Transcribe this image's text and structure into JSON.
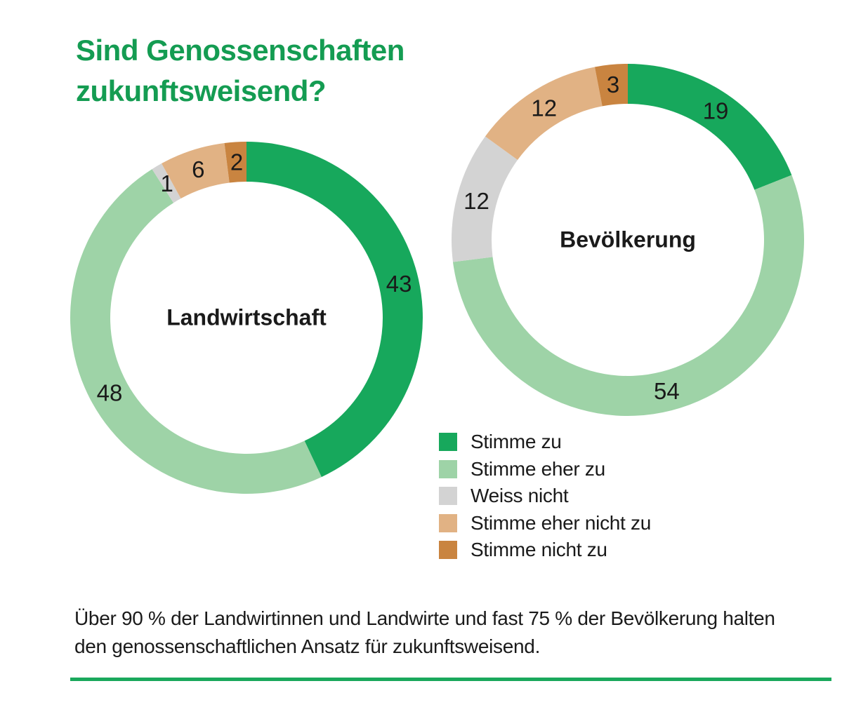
{
  "title": {
    "line1": "Sind Genossenschaften",
    "line2": "zukunftsweisend?"
  },
  "colors": {
    "title_green": "#149C52",
    "rule_green": "#1AA85C",
    "text": "#1A1A1A",
    "series": [
      "#17A85C",
      "#9ED3A7",
      "#D3D3D3",
      "#E1B284",
      "#C98440"
    ]
  },
  "chart_data": [
    {
      "type": "donut",
      "title": "Landwirtschaft",
      "unit": "%",
      "start_angle_deg": 0,
      "direction": "clockwise",
      "categories": [
        "Stimme zu",
        "Stimme eher zu",
        "Weiss nicht",
        "Stimme eher nicht zu",
        "Stimme nicht zu"
      ],
      "values": [
        43,
        48,
        1,
        6,
        2
      ]
    },
    {
      "type": "donut",
      "title": "Bevölkerung",
      "unit": "%",
      "start_angle_deg": 0,
      "direction": "clockwise",
      "categories": [
        "Stimme zu",
        "Stimme eher zu",
        "Weiss nicht",
        "Stimme eher nicht zu",
        "Stimme nicht zu"
      ],
      "values": [
        19,
        54,
        12,
        12,
        3
      ]
    }
  ],
  "legend": {
    "items": [
      "Stimme zu",
      "Stimme eher zu",
      "Weiss nicht",
      "Stimme eher nicht zu",
      "Stimme nicht zu"
    ]
  },
  "footnote": {
    "line1": "Über 90 % der Landwirtinnen und Landwirte und fast 75 % der Bevölkerung halten",
    "line2": "den genossenschaftlichen Ansatz für zukunftsweisend."
  }
}
